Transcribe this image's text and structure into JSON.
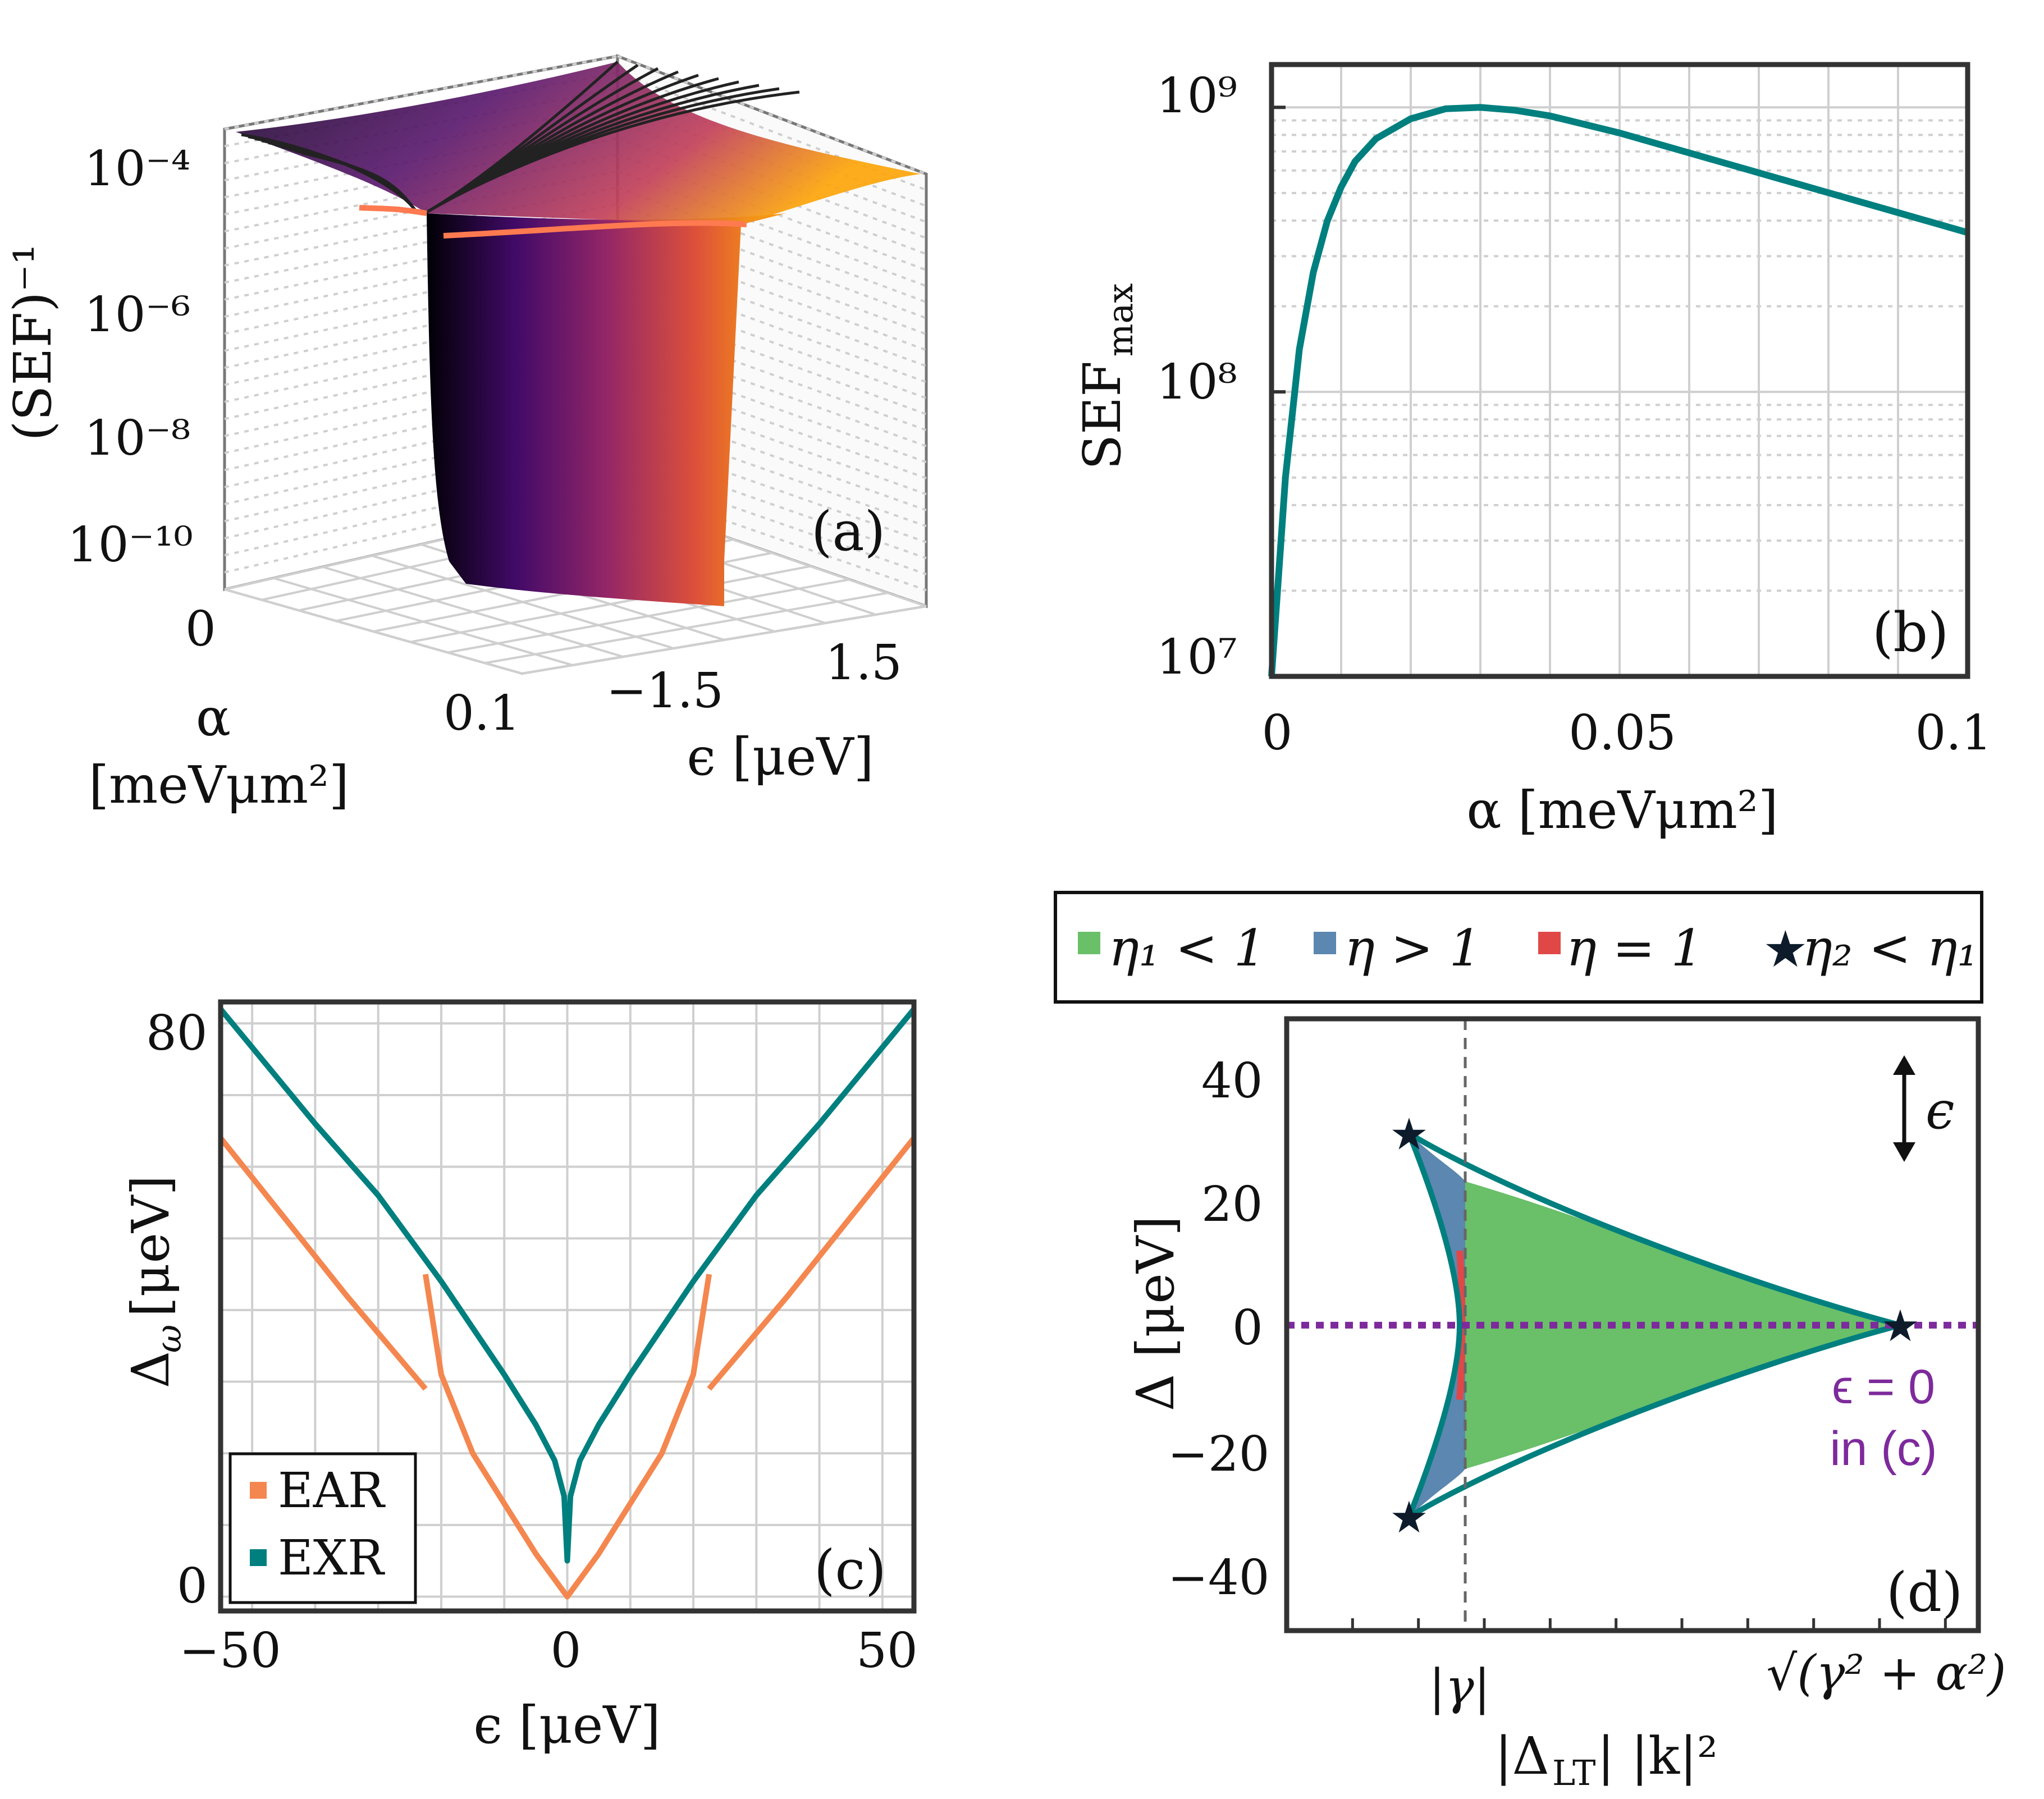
{
  "chart_data": [
    {
      "panel": "(a)",
      "type": "surface",
      "zlabel": "(SEF)⁻¹",
      "xlabel_line1": "α",
      "xlabel_line2": "[meVμm²]",
      "ylabel": "ϵ [μeV]",
      "z_ticks": [
        "10⁻⁴",
        "10⁻⁶",
        "10⁻⁸",
        "10⁻¹⁰"
      ],
      "alpha_ticks": [
        "0",
        "0.1"
      ],
      "eps_ticks": [
        "−1.5",
        "1.5"
      ],
      "alpha_range": [
        0,
        0.1
      ],
      "eps_range": [
        -1.8,
        1.8
      ],
      "colormap": [
        "#000004",
        "#420a68",
        "#932667",
        "#dd513a",
        "#fca50a",
        "#fcffa4"
      ]
    },
    {
      "panel": "(b)",
      "type": "line",
      "xlabel": "α [meVμm²]",
      "ylabel": "SEF",
      "ylabel_sub": "max",
      "y_scale": "log",
      "xlim": [
        0,
        0.1
      ],
      "ylim": [
        7.0,
        9.0
      ],
      "x_ticks": [
        "0",
        "0.05",
        "0.1"
      ],
      "y_ticks": [
        "10⁷",
        "10⁸",
        "10⁹"
      ],
      "x": [
        0.0,
        0.002,
        0.004,
        0.006,
        0.008,
        0.01,
        0.012,
        0.015,
        0.02,
        0.025,
        0.03,
        0.035,
        0.04,
        0.05,
        0.06,
        0.07,
        0.08,
        0.09,
        0.1
      ],
      "values": [
        7.0,
        7.7,
        8.15,
        8.42,
        8.6,
        8.72,
        8.81,
        8.89,
        8.96,
        8.995,
        9.0,
        8.99,
        8.97,
        8.91,
        8.84,
        8.77,
        8.7,
        8.63,
        8.56
      ],
      "series_color": "#007f7f",
      "grid": true
    },
    {
      "panel": "(c)",
      "type": "line",
      "xlabel": "ϵ [μeV]",
      "ylabel": "Δ",
      "ylabel_sub": "ω",
      "ylabel_unit": " [μeV]",
      "xlim": [
        -55,
        55
      ],
      "ylim": [
        -2,
        83
      ],
      "x_ticks": [
        "−50",
        "0",
        "50"
      ],
      "y_ticks": [
        "0",
        "80"
      ],
      "legend_position": "bottom-left",
      "series": [
        {
          "name": "EAR",
          "color": "#f4874f",
          "x": [
            -55,
            -45,
            -35,
            -22.5,
            -22.5,
            -20,
            -15,
            -10,
            -5,
            0,
            5,
            10,
            15,
            20,
            22.5,
            22.5,
            35,
            45,
            55
          ],
          "values": [
            64,
            53,
            42,
            29,
            45,
            31,
            20,
            13,
            6,
            0,
            6,
            13,
            20,
            31,
            45,
            29,
            42,
            53,
            64
          ]
        },
        {
          "name": "EXR",
          "color": "#007f7f",
          "x": [
            -55,
            -40,
            -30,
            -20,
            -10,
            -5,
            -2,
            -0.5,
            0,
            0.5,
            2,
            5,
            10,
            20,
            30,
            40,
            55
          ],
          "values": [
            82,
            66,
            56,
            44,
            31,
            24,
            19,
            14,
            5,
            14,
            19,
            24,
            31,
            44,
            56,
            66,
            82
          ]
        }
      ],
      "grid": true
    },
    {
      "panel": "(d)",
      "type": "region",
      "xlabel": "|Δ",
      "xlabel_sub": "LT",
      "xlabel_rest": "| |k|²",
      "ylabel": "Δ [μeV]",
      "ylim": [
        -50,
        50
      ],
      "y_ticks": [
        "40",
        "20",
        "0",
        "−20",
        "−40"
      ],
      "x_tick_gamma": "|γ|",
      "x_tick_root": "√(γ² + α²)",
      "legend": [
        {
          "label": "η₁ < 1",
          "color": "#6abf69"
        },
        {
          "label": "η > 1",
          "color": "#5b87b0"
        },
        {
          "label": "η = 1",
          "color": "#e04848"
        },
        {
          "label": "η₂ < η₁",
          "color": "#0d1b2a"
        }
      ],
      "annotation_eps": "ϵ",
      "annotation_line1": "ϵ = 0",
      "annotation_line2": "in (c)",
      "annotation_color": "#7d2a9c",
      "boundary_color": "#007f7f"
    }
  ]
}
